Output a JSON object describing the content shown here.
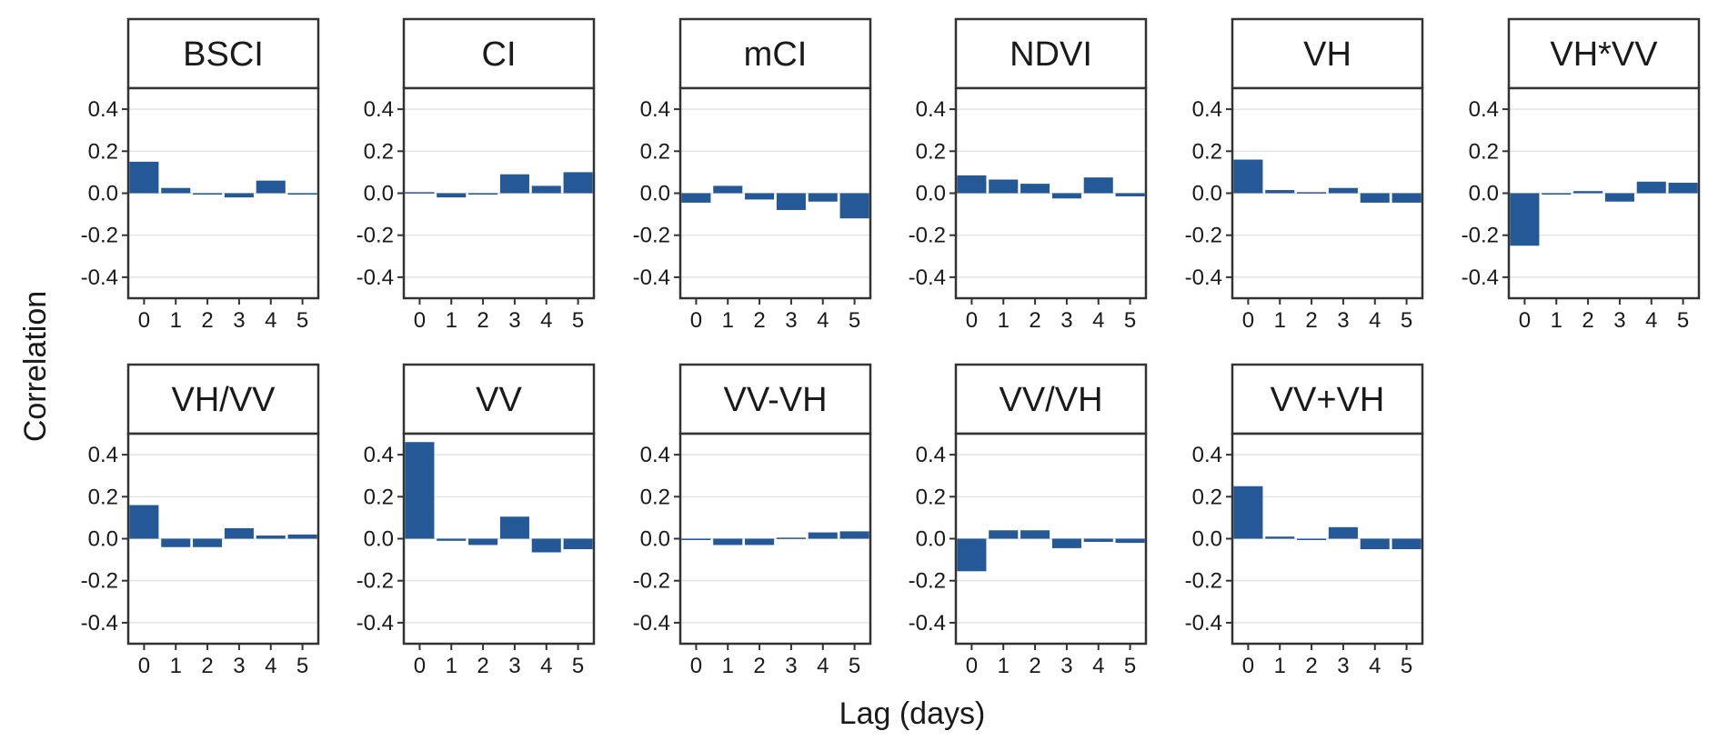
{
  "chart_data": {
    "type": "bar",
    "xlabel": "Lag (days)",
    "ylabel": "Correlation",
    "ylim": [
      -0.5,
      0.5
    ],
    "yticks": [
      -0.4,
      -0.2,
      0.0,
      0.2,
      0.4
    ],
    "ytick_labels": [
      "-0.4",
      "-0.2",
      "0.0",
      "0.2",
      "0.4"
    ],
    "categories": [
      "0",
      "1",
      "2",
      "3",
      "4",
      "5"
    ],
    "grid": true,
    "bar_color": "#245896",
    "panels": [
      {
        "title": "BSCI",
        "values": [
          0.15,
          0.025,
          0.0,
          -0.02,
          0.06,
          -0.005
        ]
      },
      {
        "title": "CI",
        "values": [
          0.005,
          -0.02,
          -0.005,
          0.09,
          0.035,
          0.1
        ]
      },
      {
        "title": "mCI",
        "values": [
          -0.045,
          0.035,
          -0.03,
          -0.08,
          -0.04,
          -0.12
        ]
      },
      {
        "title": "NDVI",
        "values": [
          0.085,
          0.065,
          0.045,
          -0.025,
          0.075,
          -0.015
        ]
      },
      {
        "title": "VH",
        "values": [
          0.16,
          0.015,
          0.005,
          0.025,
          -0.045,
          -0.045
        ]
      },
      {
        "title": "VH*VV",
        "values": [
          -0.25,
          -0.005,
          0.01,
          -0.04,
          0.055,
          0.05
        ]
      },
      {
        "title": "VH/VV",
        "values": [
          0.16,
          -0.04,
          -0.04,
          0.05,
          0.015,
          0.02
        ]
      },
      {
        "title": "VV",
        "values": [
          0.46,
          -0.01,
          -0.03,
          0.105,
          -0.065,
          -0.05
        ]
      },
      {
        "title": "VV-VH",
        "values": [
          0.0,
          -0.03,
          -0.03,
          0.005,
          0.03,
          0.035
        ]
      },
      {
        "title": "VV/VH",
        "values": [
          -0.155,
          0.04,
          0.04,
          -0.045,
          -0.015,
          -0.02
        ]
      },
      {
        "title": "VV+VH",
        "values": [
          0.25,
          0.01,
          -0.005,
          0.055,
          -0.05,
          -0.05
        ]
      }
    ]
  }
}
